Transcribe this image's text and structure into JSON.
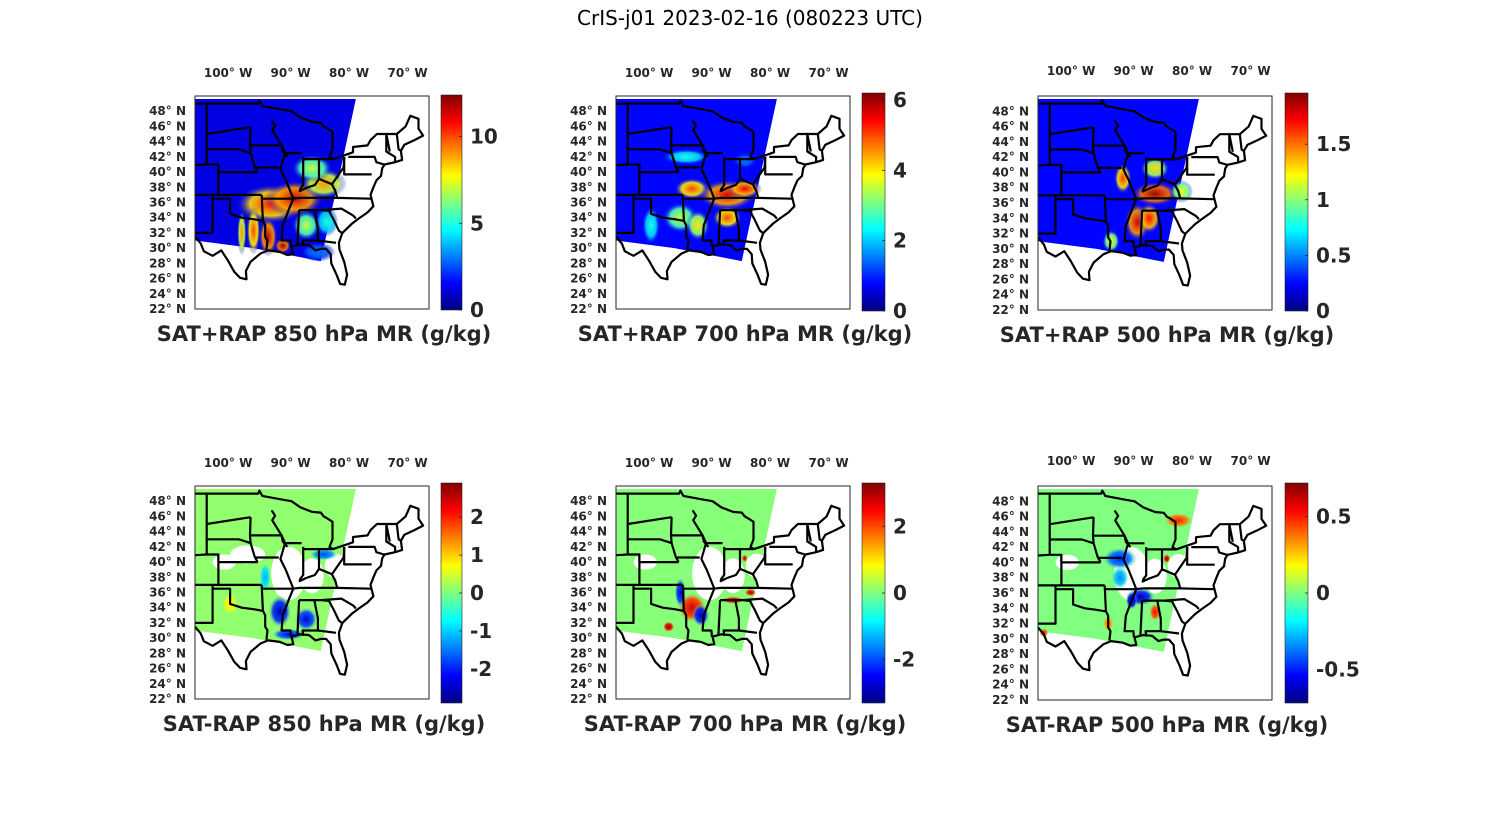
{
  "figure": {
    "title": "CrIS-j01 2023-02-16 (080223 UTC)"
  },
  "chart_data": [
    {
      "type": "heatmap",
      "title": "SAT+RAP 850 hPa MR (g/kg)",
      "map": "CONUS east-central, state outlines",
      "x_ticks": [
        "100° W",
        "90° W",
        "80° W",
        "70° W"
      ],
      "y_ticks": [
        "48° N",
        "46° N",
        "44° N",
        "42° N",
        "40° N",
        "38° N",
        "36° N",
        "34° N",
        "32° N",
        "30° N",
        "28° N",
        "26° N",
        "24° N",
        "22° N"
      ],
      "colormap": "jet",
      "clim": [
        0,
        12.4
      ],
      "colorbar_ticks": [
        0,
        5,
        10
      ],
      "colorbar_labels": [
        "0",
        "5",
        "10"
      ],
      "features": [
        {
          "region": "northern plains / upper midwest",
          "value": 1
        },
        {
          "region": "Ohio valley / Kentucky / Tennessee",
          "value": 11
        },
        {
          "region": "east Texas / Louisiana band",
          "value": 11
        },
        {
          "region": "Indiana / Ohio",
          "value": 7
        },
        {
          "region": "Alabama / Georgia",
          "value": 7
        }
      ]
    },
    {
      "type": "heatmap",
      "title": "SAT+RAP 700 hPa MR (g/kg)",
      "x_ticks": [
        "100° W",
        "90° W",
        "80° W",
        "70° W"
      ],
      "y_ticks": [
        "48° N",
        "46° N",
        "44° N",
        "42° N",
        "40° N",
        "38° N",
        "36° N",
        "34° N",
        "32° N",
        "30° N",
        "28° N",
        "26° N",
        "24° N",
        "22° N"
      ],
      "colormap": "jet",
      "clim": [
        0,
        6.2
      ],
      "colorbar_ticks": [
        0,
        2,
        4,
        6
      ],
      "colorbar_labels": [
        "0",
        "2",
        "4",
        "6"
      ],
      "features": [
        {
          "region": "northern plains / upper midwest",
          "value": 0.8
        },
        {
          "region": "Kentucky / Tennessee",
          "value": 5.5
        },
        {
          "region": "Missouri / Arkansas",
          "value": 5
        },
        {
          "region": "east Texas",
          "value": 3
        }
      ]
    },
    {
      "type": "heatmap",
      "title": "SAT+RAP 500 hPa MR (g/kg)",
      "x_ticks": [
        "100° W",
        "90° W",
        "80° W",
        "70° W"
      ],
      "y_ticks": [
        "48° N",
        "46° N",
        "44° N",
        "42° N",
        "40° N",
        "38° N",
        "36° N",
        "34° N",
        "32° N",
        "30° N",
        "28° N",
        "26° N",
        "24° N",
        "22° N"
      ],
      "colormap": "jet",
      "clim": [
        0,
        1.96
      ],
      "colorbar_ticks": [
        0,
        0.5,
        1,
        1.5
      ],
      "colorbar_labels": [
        "0",
        "0.5",
        "1",
        "1.5"
      ],
      "features": [
        {
          "region": "northern plains",
          "value": 0.2
        },
        {
          "region": "Kentucky / Tennessee",
          "value": 1.9
        },
        {
          "region": "Mississippi / Alabama",
          "value": 1.8
        },
        {
          "region": "Illinois / Indiana",
          "value": 1.4
        }
      ]
    },
    {
      "type": "heatmap",
      "title": "SAT-RAP 850 hPa MR (g/kg)",
      "x_ticks": [
        "100° W",
        "90° W",
        "80° W",
        "70° W"
      ],
      "y_ticks": [
        "48° N",
        "46° N",
        "44° N",
        "42° N",
        "40° N",
        "38° N",
        "36° N",
        "34° N",
        "32° N",
        "30° N",
        "28° N",
        "26° N",
        "24° N",
        "22° N"
      ],
      "colormap": "jet",
      "clim": [
        -2.9,
        2.9
      ],
      "colorbar_ticks": [
        -2,
        -1,
        0,
        1,
        2
      ],
      "colorbar_labels": [
        "-2",
        "-1",
        "0",
        "1",
        "2"
      ],
      "features": [
        {
          "region": "northern plains",
          "value": 0.1
        },
        {
          "region": "Louisiana / Mississippi",
          "value": -2.6
        },
        {
          "region": "Ohio / Indiana",
          "value": -2
        },
        {
          "region": "west Texas",
          "value": 0.8
        }
      ]
    },
    {
      "type": "heatmap",
      "title": "SAT-RAP 700 hPa MR (g/kg)",
      "x_ticks": [
        "100° W",
        "90° W",
        "80° W",
        "70° W"
      ],
      "y_ticks": [
        "48° N",
        "46° N",
        "44° N",
        "42° N",
        "40° N",
        "38° N",
        "36° N",
        "34° N",
        "32° N",
        "30° N",
        "28° N",
        "26° N",
        "24° N",
        "22° N"
      ],
      "colormap": "jet",
      "clim": [
        -3.3,
        3.3
      ],
      "colorbar_ticks": [
        -2,
        0,
        2
      ],
      "colorbar_labels": [
        "-2",
        "0",
        "2"
      ],
      "features": [
        {
          "region": "northern plains",
          "value": 0
        },
        {
          "region": "Arkansas / Louisiana",
          "value": 3
        },
        {
          "region": "east Texas / Oklahoma",
          "value": -3
        }
      ]
    },
    {
      "type": "heatmap",
      "title": "SAT-RAP 500 hPa MR (g/kg)",
      "x_ticks": [
        "100° W",
        "90° W",
        "80° W",
        "70° W"
      ],
      "y_ticks": [
        "48° N",
        "46° N",
        "44° N",
        "42° N",
        "40° N",
        "38° N",
        "36° N",
        "34° N",
        "32° N",
        "30° N",
        "28° N",
        "26° N",
        "24° N",
        "22° N"
      ],
      "colormap": "jet",
      "clim": [
        -0.72,
        0.72
      ],
      "colorbar_ticks": [
        -0.5,
        0,
        0.5
      ],
      "colorbar_labels": [
        "-0.5",
        "0",
        "0.5"
      ],
      "features": [
        {
          "region": "northern plains",
          "value": 0
        },
        {
          "region": "Tennessee / Mississippi",
          "value": -0.65
        },
        {
          "region": "Iowa / Illinois",
          "value": -0.5
        },
        {
          "region": "Ontario / Michigan",
          "value": 0.5
        },
        {
          "region": "Alabama",
          "value": 0.5
        }
      ]
    }
  ]
}
